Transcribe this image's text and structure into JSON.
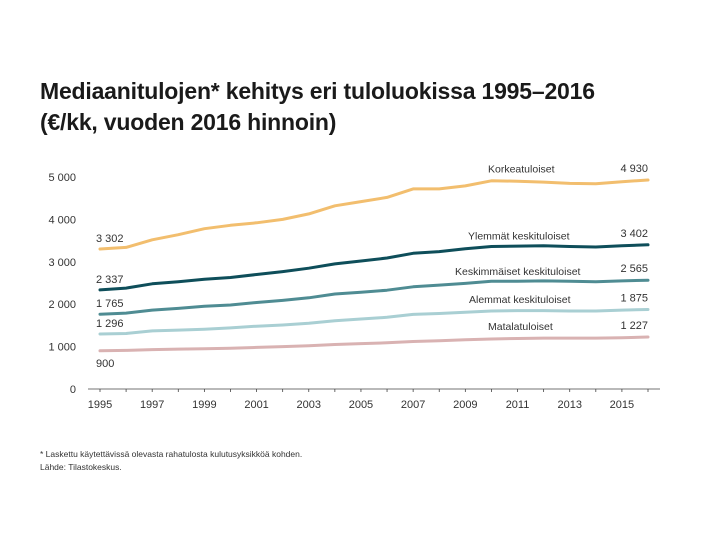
{
  "title_line1": "Mediaanitulojen* kehitys eri tuloluokissa 1995–2016",
  "title_line2": "(€/kk, vuoden 2016 hinnoin)",
  "footnote": "* Laskettu käytettävissä olevasta rahatulosta kulutusyksikköä kohden.",
  "source": "Lähde: Tilastokeskus.",
  "chart_data": {
    "type": "line",
    "title": "Mediaanitulojen* kehitys eri tuloluokissa 1995–2016",
    "subtitle": "(€/kk, vuoden 2016 hinnoin)",
    "xlabel": "",
    "ylabel": "",
    "x": [
      1995,
      1996,
      1997,
      1998,
      1999,
      2000,
      2001,
      2002,
      2003,
      2004,
      2005,
      2006,
      2007,
      2008,
      2009,
      2010,
      2011,
      2012,
      2013,
      2014,
      2015,
      2016
    ],
    "x_ticks": [
      1995,
      1997,
      1999,
      2001,
      2003,
      2005,
      2007,
      2009,
      2011,
      2013,
      2015
    ],
    "x_tick_labels": [
      "1995",
      "1997",
      "1999",
      "2001",
      "2003",
      "2005",
      "2007",
      "2009",
      "2011",
      "2013",
      "2015"
    ],
    "y_ticks": [
      0,
      1000,
      2000,
      3000,
      4000,
      5000
    ],
    "y_tick_labels": [
      "0",
      "1 000",
      "2 000",
      "3 000",
      "4 000",
      "5 000"
    ],
    "ylim": [
      0,
      5000
    ],
    "xlim": [
      1995,
      2016
    ],
    "grid": false,
    "legend": "inline labels",
    "series": [
      {
        "name": "Korkeatuloiset",
        "color": "#f2be6e",
        "start_label": "3 302",
        "end_label": "4 930",
        "values": [
          3302,
          3340,
          3520,
          3640,
          3780,
          3860,
          3920,
          4000,
          4130,
          4320,
          4420,
          4520,
          4720,
          4720,
          4790,
          4910,
          4900,
          4880,
          4850,
          4840,
          4890,
          4930
        ]
      },
      {
        "name": "Ylemmät keskituloiset",
        "color": "#0e4e5a",
        "start_label": "2 337",
        "end_label": "3 402",
        "values": [
          2337,
          2380,
          2480,
          2530,
          2590,
          2630,
          2700,
          2770,
          2850,
          2950,
          3020,
          3090,
          3200,
          3240,
          3310,
          3360,
          3370,
          3380,
          3360,
          3350,
          3380,
          3402
        ]
      },
      {
        "name": "Keskimmäiset keskituloiset",
        "color": "#4f8c93",
        "start_label": "1 765",
        "end_label": "2 565",
        "values": [
          1765,
          1790,
          1860,
          1900,
          1950,
          1980,
          2040,
          2090,
          2150,
          2240,
          2280,
          2330,
          2410,
          2450,
          2490,
          2540,
          2540,
          2550,
          2540,
          2530,
          2550,
          2565
        ]
      },
      {
        "name": "Alemmat keskituloiset",
        "color": "#a9cfd3",
        "start_label": "1 296",
        "end_label": "1 875",
        "values": [
          1296,
          1310,
          1370,
          1390,
          1410,
          1440,
          1480,
          1510,
          1550,
          1610,
          1650,
          1690,
          1760,
          1780,
          1810,
          1840,
          1850,
          1850,
          1840,
          1840,
          1860,
          1875
        ]
      },
      {
        "name": "Matalatuloiset",
        "color": "#d9b2b2",
        "start_label": "900",
        "end_label": "1 227",
        "values": [
          900,
          910,
          930,
          940,
          950,
          960,
          980,
          1000,
          1020,
          1050,
          1070,
          1090,
          1120,
          1140,
          1160,
          1180,
          1190,
          1200,
          1200,
          1200,
          1210,
          1227
        ]
      }
    ]
  }
}
